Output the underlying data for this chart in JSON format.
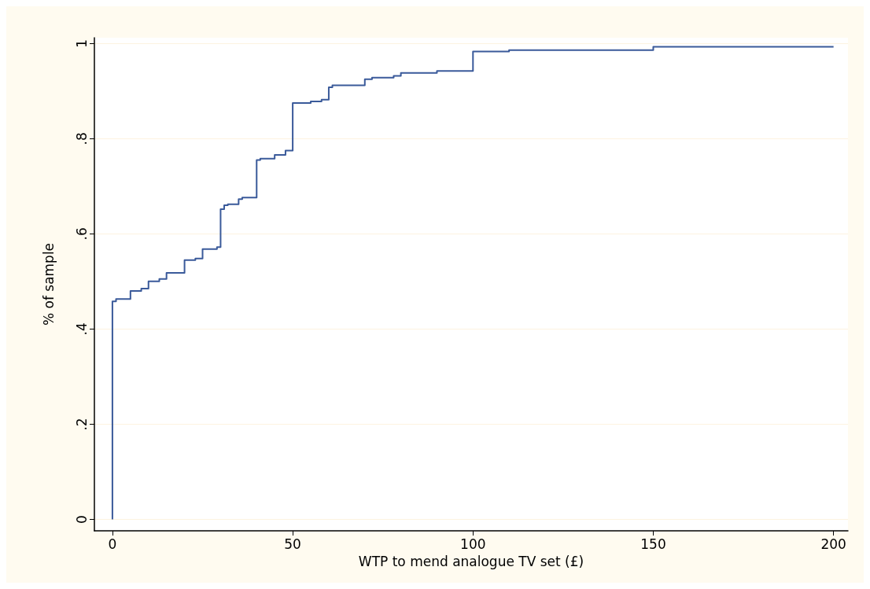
{
  "chart_data": {
    "type": "step",
    "xlabel": "WTP to mend analogue TV set (£)",
    "ylabel": "% of sample",
    "x": [
      0,
      0,
      1,
      5,
      8,
      10,
      13,
      15,
      20,
      23,
      25,
      29,
      30,
      31,
      32,
      35,
      36,
      40,
      41,
      45,
      48,
      50,
      55,
      58,
      60,
      61,
      70,
      72,
      78,
      80,
      90,
      100,
      110,
      150,
      200
    ],
    "series": [
      {
        "color": "#3a5a9a",
        "values": [
          0,
          0.458,
          0.463,
          0.48,
          0.485,
          0.5,
          0.505,
          0.518,
          0.545,
          0.548,
          0.568,
          0.572,
          0.652,
          0.66,
          0.662,
          0.673,
          0.676,
          0.755,
          0.758,
          0.766,
          0.775,
          0.875,
          0.878,
          0.882,
          0.908,
          0.912,
          0.925,
          0.928,
          0.932,
          0.938,
          0.942,
          0.983,
          0.986,
          0.993,
          0.993
        ]
      }
    ],
    "xlim": [
      -5,
      204
    ],
    "xticks": [
      0,
      50,
      100,
      150,
      200
    ],
    "ylim": [
      -0.024,
      1.012
    ],
    "yticks": [
      {
        "value": 0,
        "label": "0"
      },
      {
        "value": 0.2,
        "label": ".2"
      },
      {
        "value": 0.4,
        "label": ".4"
      },
      {
        "value": 0.6,
        "label": ".6"
      },
      {
        "value": 0.8,
        "label": ".8"
      },
      {
        "value": 1,
        "label": "1"
      }
    ],
    "grid": "y",
    "marker": "none",
    "line_style": "solid"
  }
}
